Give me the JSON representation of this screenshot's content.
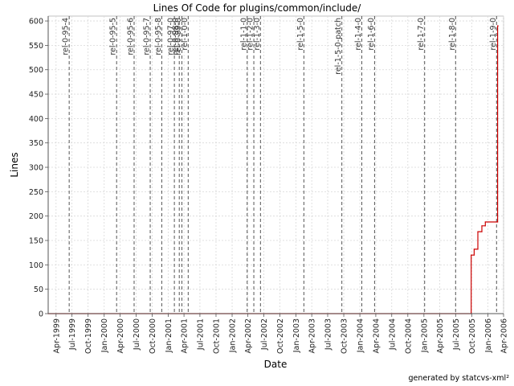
{
  "chart_data": {
    "type": "line",
    "title": "Lines Of Code for plugins/common/include/",
    "xlabel": "Date",
    "ylabel": "Lines",
    "footer": "generated by statcvs-xml²",
    "ylim": [
      0,
      610
    ],
    "xlim": [
      "1999-02-15",
      "2006-04-01"
    ],
    "y_ticks": [
      0,
      50,
      100,
      150,
      200,
      250,
      300,
      350,
      400,
      450,
      500,
      550,
      600
    ],
    "x_ticks": [
      {
        "date": "1999-04-01",
        "label": "Apr-1999"
      },
      {
        "date": "1999-07-01",
        "label": "Jul-1999"
      },
      {
        "date": "1999-10-01",
        "label": "Oct-1999"
      },
      {
        "date": "2000-01-01",
        "label": "Jan-2000"
      },
      {
        "date": "2000-04-01",
        "label": "Apr-2000"
      },
      {
        "date": "2000-07-01",
        "label": "Jul-2000"
      },
      {
        "date": "2000-10-01",
        "label": "Oct-2000"
      },
      {
        "date": "2001-01-01",
        "label": "Jan-2001"
      },
      {
        "date": "2001-04-01",
        "label": "Apr-2001"
      },
      {
        "date": "2001-07-01",
        "label": "Jul-2001"
      },
      {
        "date": "2001-10-01",
        "label": "Oct-2001"
      },
      {
        "date": "2002-01-01",
        "label": "Jan-2002"
      },
      {
        "date": "2002-04-01",
        "label": "Apr-2002"
      },
      {
        "date": "2002-07-01",
        "label": "Jul-2002"
      },
      {
        "date": "2002-10-01",
        "label": "Oct-2002"
      },
      {
        "date": "2003-01-01",
        "label": "Jan-2003"
      },
      {
        "date": "2003-04-01",
        "label": "Apr-2003"
      },
      {
        "date": "2003-07-01",
        "label": "Jul-2003"
      },
      {
        "date": "2003-10-01",
        "label": "Oct-2003"
      },
      {
        "date": "2004-01-01",
        "label": "Jan-2004"
      },
      {
        "date": "2004-04-01",
        "label": "Apr-2004"
      },
      {
        "date": "2004-07-01",
        "label": "Jul-2004"
      },
      {
        "date": "2004-10-01",
        "label": "Oct-2004"
      },
      {
        "date": "2005-01-01",
        "label": "Jan-2005"
      },
      {
        "date": "2005-04-01",
        "label": "Apr-2005"
      },
      {
        "date": "2005-07-01",
        "label": "Jul-2005"
      },
      {
        "date": "2005-10-01",
        "label": "Oct-2005"
      },
      {
        "date": "2006-01-01",
        "label": "Jan-2006"
      },
      {
        "date": "2006-04-01",
        "label": "Apr-2006"
      }
    ],
    "tags": [
      {
        "label": "rel-0-95-4",
        "date": "1999-06-15"
      },
      {
        "label": "rel-0-95-5",
        "date": "2000-03-12"
      },
      {
        "label": "rel-0-95-6",
        "date": "2000-06-20"
      },
      {
        "label": "rel-0-95-7",
        "date": "2000-09-20"
      },
      {
        "label": "rel-0-95-8",
        "date": "2000-11-25"
      },
      {
        "label": "rel-0-97-0",
        "date": "2001-02-05"
      },
      {
        "label": "rel-0-98-0",
        "date": "2001-03-05"
      },
      {
        "label": "rel-0-99-0",
        "date": "2001-03-20"
      },
      {
        "label": "rel-1-0-0",
        "date": "2001-04-25"
      },
      {
        "label": "rel-1-1-0",
        "date": "2002-03-28"
      },
      {
        "label": "rel-1-2-0",
        "date": "2002-05-05"
      },
      {
        "label": "rel-1-3-0",
        "date": "2002-06-12"
      },
      {
        "label": "rel-1-5-0",
        "date": "2003-02-15"
      },
      {
        "label": "rel-1-5-0-patch",
        "date": "2003-09-20"
      },
      {
        "label": "rel-1-4-0",
        "date": "2004-01-12"
      },
      {
        "label": "rel-1-6-0",
        "date": "2004-03-25"
      },
      {
        "label": "rel-1-7-0",
        "date": "2005-01-05"
      },
      {
        "label": "rel-1-8-0",
        "date": "2005-07-01"
      },
      {
        "label": "rel-1-9-0",
        "date": "2006-02-20"
      }
    ],
    "series": [
      {
        "color": "#cc0000",
        "points": [
          {
            "x": "1999-02-15",
            "y": 0
          },
          {
            "x": "2005-09-28",
            "y": 0
          },
          {
            "x": "2005-09-28",
            "y": 120
          },
          {
            "x": "2005-10-15",
            "y": 120
          },
          {
            "x": "2005-10-15",
            "y": 132
          },
          {
            "x": "2005-11-05",
            "y": 132
          },
          {
            "x": "2005-11-05",
            "y": 168
          },
          {
            "x": "2005-11-28",
            "y": 168
          },
          {
            "x": "2005-11-28",
            "y": 180
          },
          {
            "x": "2005-12-18",
            "y": 180
          },
          {
            "x": "2005-12-18",
            "y": 188
          },
          {
            "x": "2006-02-26",
            "y": 188
          },
          {
            "x": "2006-02-26",
            "y": 590
          },
          {
            "x": "2006-03-01",
            "y": 590
          }
        ]
      }
    ],
    "grid": true
  }
}
